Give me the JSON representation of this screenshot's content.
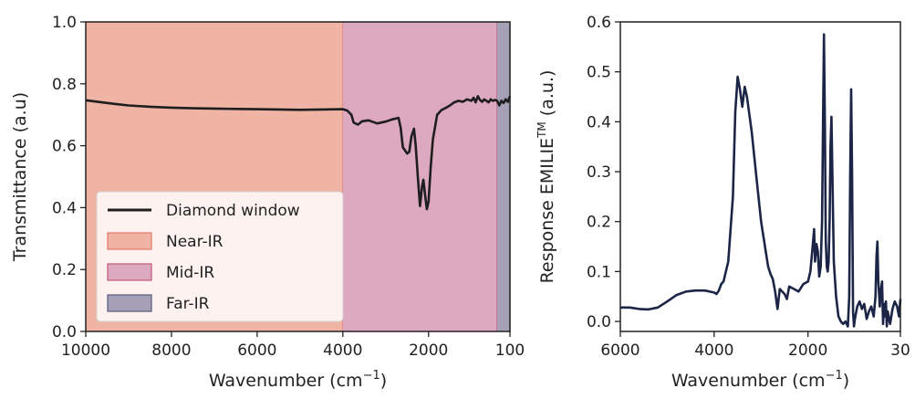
{
  "chart_data": [
    {
      "type": "line",
      "xlabel": "Wavenumber (cm",
      "xlabel_sup": "−1",
      "xlabel_suffix": ")",
      "ylabel": "Transmittance (a.u)",
      "xlim": [
        10000,
        100
      ],
      "ylim": [
        0,
        1.0
      ],
      "x_ticks": [
        10000,
        8000,
        6000,
        4000,
        2000,
        100
      ],
      "x_tick_labels": [
        "10000",
        "8000",
        "6000",
        "4000",
        "2000",
        "100"
      ],
      "y_ticks": [
        0.0,
        0.2,
        0.4,
        0.6,
        0.8,
        1.0
      ],
      "y_tick_labels": [
        "0.0",
        "0.2",
        "0.4",
        "0.6",
        "0.8",
        "1.0"
      ],
      "grid": false,
      "legend_position": "lower-left",
      "bands": [
        {
          "name": "Near-IR",
          "from": 10000,
          "to": 4000,
          "color": "#f0b4a4",
          "edge": "#e07a6a"
        },
        {
          "name": "Mid-IR",
          "from": 4000,
          "to": 400,
          "color": "#dda9c1",
          "edge": "#c05a7a"
        },
        {
          "name": "Far-IR",
          "from": 400,
          "to": 100,
          "color": "#a5a0b5",
          "edge": "#555a7a"
        }
      ],
      "series": [
        {
          "name": "Diamond window",
          "color": "#1e1e1e",
          "points": [
            [
              10000,
              0.747
            ],
            [
              9500,
              0.738
            ],
            [
              9000,
              0.73
            ],
            [
              8500,
              0.726
            ],
            [
              8000,
              0.723
            ],
            [
              7500,
              0.721
            ],
            [
              7000,
              0.72
            ],
            [
              6500,
              0.719
            ],
            [
              6000,
              0.718
            ],
            [
              5500,
              0.717
            ],
            [
              5000,
              0.716
            ],
            [
              4500,
              0.717
            ],
            [
              4000,
              0.718
            ],
            [
              3900,
              0.714
            ],
            [
              3800,
              0.7
            ],
            [
              3750,
              0.675
            ],
            [
              3650,
              0.668
            ],
            [
              3550,
              0.679
            ],
            [
              3400,
              0.682
            ],
            [
              3200,
              0.672
            ],
            [
              3000,
              0.678
            ],
            [
              2850,
              0.685
            ],
            [
              2700,
              0.69
            ],
            [
              2650,
              0.658
            ],
            [
              2600,
              0.595
            ],
            [
              2500,
              0.575
            ],
            [
              2450,
              0.58
            ],
            [
              2400,
              0.63
            ],
            [
              2340,
              0.655
            ],
            [
              2300,
              0.6
            ],
            [
              2250,
              0.5
            ],
            [
              2200,
              0.405
            ],
            [
              2150,
              0.47
            ],
            [
              2120,
              0.49
            ],
            [
              2080,
              0.44
            ],
            [
              2040,
              0.395
            ],
            [
              2000,
              0.42
            ],
            [
              1950,
              0.53
            ],
            [
              1900,
              0.62
            ],
            [
              1800,
              0.7
            ],
            [
              1700,
              0.715
            ],
            [
              1600,
              0.722
            ],
            [
              1500,
              0.73
            ],
            [
              1400,
              0.74
            ],
            [
              1300,
              0.745
            ],
            [
              1200,
              0.742
            ],
            [
              1100,
              0.75
            ],
            [
              1000,
              0.745
            ],
            [
              950,
              0.755
            ],
            [
              900,
              0.74
            ],
            [
              850,
              0.76
            ],
            [
              800,
              0.748
            ],
            [
              750,
              0.742
            ],
            [
              700,
              0.75
            ],
            [
              650,
              0.745
            ],
            [
              600,
              0.74
            ],
            [
              550,
              0.75
            ],
            [
              500,
              0.745
            ],
            [
              450,
              0.748
            ],
            [
              400,
              0.745
            ],
            [
              350,
              0.73
            ],
            [
              300,
              0.745
            ],
            [
              250,
              0.738
            ],
            [
              200,
              0.75
            ],
            [
              150,
              0.742
            ],
            [
              100,
              0.76
            ]
          ]
        }
      ]
    },
    {
      "type": "line",
      "xlabel": "Wavenumber (cm",
      "xlabel_sup": "−1",
      "xlabel_suffix": ")",
      "ylabel": "Response EMILIE",
      "ylabel_sup": "TM",
      "ylabel_suffix": " (a.u.)",
      "xlim": [
        6000,
        30
      ],
      "ylim": [
        -0.02,
        0.6
      ],
      "x_ticks": [
        6000,
        4000,
        2000,
        30
      ],
      "x_tick_labels": [
        "6000",
        "4000",
        "2000",
        "30"
      ],
      "y_ticks": [
        0.0,
        0.1,
        0.2,
        0.3,
        0.4,
        0.5,
        0.6
      ],
      "y_tick_labels": [
        "0.0",
        "0.1",
        "0.2",
        "0.3",
        "0.4",
        "0.5",
        "0.6"
      ],
      "grid": false,
      "series": [
        {
          "color": "#1d2547",
          "points": [
            [
              6000,
              0.028
            ],
            [
              5800,
              0.028
            ],
            [
              5600,
              0.025
            ],
            [
              5400,
              0.024
            ],
            [
              5200,
              0.028
            ],
            [
              5000,
              0.04
            ],
            [
              4800,
              0.053
            ],
            [
              4600,
              0.06
            ],
            [
              4400,
              0.062
            ],
            [
              4200,
              0.062
            ],
            [
              4000,
              0.058
            ],
            [
              3950,
              0.055
            ],
            [
              3900,
              0.062
            ],
            [
              3850,
              0.075
            ],
            [
              3800,
              0.08
            ],
            [
              3700,
              0.12
            ],
            [
              3600,
              0.25
            ],
            [
              3550,
              0.42
            ],
            [
              3500,
              0.49
            ],
            [
              3450,
              0.465
            ],
            [
              3400,
              0.43
            ],
            [
              3350,
              0.47
            ],
            [
              3300,
              0.45
            ],
            [
              3200,
              0.38
            ],
            [
              3100,
              0.29
            ],
            [
              3000,
              0.2
            ],
            [
              2900,
              0.14
            ],
            [
              2850,
              0.11
            ],
            [
              2800,
              0.095
            ],
            [
              2750,
              0.085
            ],
            [
              2700,
              0.06
            ],
            [
              2650,
              0.025
            ],
            [
              2600,
              0.065
            ],
            [
              2500,
              0.055
            ],
            [
              2450,
              0.045
            ],
            [
              2400,
              0.07
            ],
            [
              2300,
              0.065
            ],
            [
              2200,
              0.06
            ],
            [
              2100,
              0.075
            ],
            [
              2000,
              0.08
            ],
            [
              1950,
              0.1
            ],
            [
              1900,
              0.15
            ],
            [
              1870,
              0.185
            ],
            [
              1850,
              0.12
            ],
            [
              1820,
              0.155
            ],
            [
              1790,
              0.14
            ],
            [
              1760,
              0.09
            ],
            [
              1730,
              0.11
            ],
            [
              1700,
              0.2
            ],
            [
              1680,
              0.4
            ],
            [
              1660,
              0.575
            ],
            [
              1640,
              0.4
            ],
            [
              1620,
              0.16
            ],
            [
              1600,
              0.11
            ],
            [
              1580,
              0.1
            ],
            [
              1560,
              0.12
            ],
            [
              1540,
              0.2
            ],
            [
              1520,
              0.35
            ],
            [
              1500,
              0.41
            ],
            [
              1480,
              0.3
            ],
            [
              1450,
              0.12
            ],
            [
              1400,
              0.05
            ],
            [
              1350,
              0.01
            ],
            [
              1300,
              0.0
            ],
            [
              1250,
              -0.005
            ],
            [
              1200,
              0.0
            ],
            [
              1150,
              -0.01
            ],
            [
              1120,
              0.05
            ],
            [
              1100,
              0.3
            ],
            [
              1080,
              0.465
            ],
            [
              1060,
              0.3
            ],
            [
              1040,
              0.02
            ],
            [
              1020,
              -0.01
            ],
            [
              1000,
              0.005
            ],
            [
              950,
              0.03
            ],
            [
              900,
              0.04
            ],
            [
              850,
              0.025
            ],
            [
              800,
              0.035
            ],
            [
              750,
              0.005
            ],
            [
              700,
              0.02
            ],
            [
              650,
              0.03
            ],
            [
              600,
              0.01
            ],
            [
              560,
              0.05
            ],
            [
              540,
              0.13
            ],
            [
              520,
              0.16
            ],
            [
              500,
              0.08
            ],
            [
              470,
              0.03
            ],
            [
              450,
              0.06
            ],
            [
              420,
              0.08
            ],
            [
              400,
              -0.005
            ],
            [
              380,
              0.035
            ],
            [
              360,
              0.01
            ],
            [
              340,
              0.04
            ],
            [
              320,
              -0.01
            ],
            [
              300,
              0.02
            ],
            [
              250,
              -0.005
            ],
            [
              200,
              0.025
            ],
            [
              150,
              0.04
            ],
            [
              100,
              0.03
            ],
            [
              60,
              0.01
            ],
            [
              30,
              0.045
            ]
          ]
        }
      ]
    }
  ]
}
